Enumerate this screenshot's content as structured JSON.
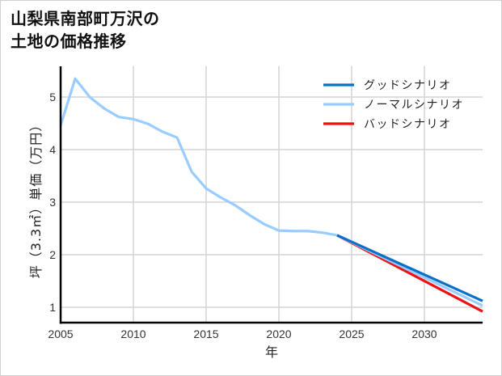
{
  "title_lines": [
    "山梨県南部町万沢の",
    "土地の価格推移"
  ],
  "chart_data": {
    "type": "line",
    "title": "山梨県南部町万沢の土地の価格推移",
    "xlabel": "年",
    "ylabel": "坪（3.3㎡）単価（万円）",
    "xlim": [
      2005,
      2034
    ],
    "ylim": [
      0.7,
      5.58
    ],
    "x_ticks": [
      2005,
      2010,
      2015,
      2020,
      2025,
      2030
    ],
    "y_ticks": [
      1,
      2,
      3,
      4,
      5
    ],
    "grid": true,
    "legend_position": "upper right",
    "historical": {
      "x": [
        2005,
        2006,
        2007,
        2008,
        2009,
        2010,
        2011,
        2012,
        2013,
        2014,
        2015,
        2016,
        2017,
        2018,
        2019,
        2020,
        2021,
        2022,
        2023,
        2024
      ],
      "values": [
        4.46,
        5.35,
        5.0,
        4.78,
        4.62,
        4.58,
        4.49,
        4.34,
        4.23,
        3.58,
        3.26,
        3.09,
        2.94,
        2.75,
        2.58,
        2.46,
        2.45,
        2.45,
        2.42,
        2.37
      ]
    },
    "series": [
      {
        "name": "グッドシナリオ",
        "color": "#0a6fc8",
        "x": [
          2024,
          2034
        ],
        "values": [
          2.37,
          1.12
        ]
      },
      {
        "name": "ノーマルシナリオ",
        "color": "#99ccff",
        "x": [
          2024,
          2034
        ],
        "values": [
          2.37,
          1.03
        ]
      },
      {
        "name": "バッドシナリオ",
        "color": "#ee1111",
        "x": [
          2024,
          2034
        ],
        "values": [
          2.37,
          0.92
        ]
      }
    ]
  }
}
